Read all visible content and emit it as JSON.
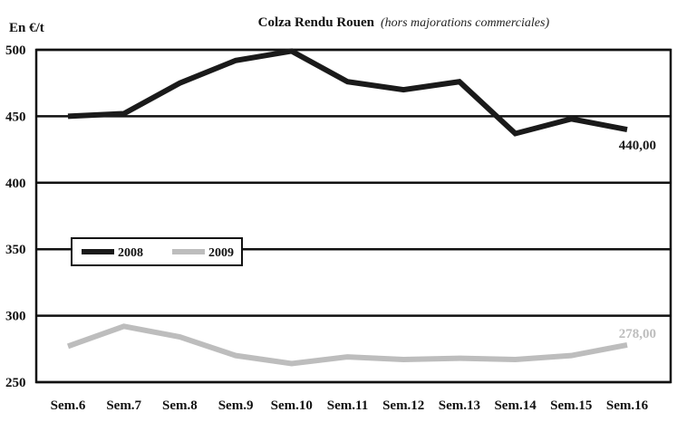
{
  "chart_data": {
    "type": "line",
    "title": "Colza Rendu Rouen",
    "subtitle": "(hors majorations commerciales)",
    "ylabel": "En €/t",
    "xlabel": "",
    "ylim": [
      250,
      500
    ],
    "y_ticks": [
      "500",
      "450",
      "400",
      "350",
      "300",
      "250"
    ],
    "y_tick_values": [
      500,
      450,
      400,
      350,
      300,
      250
    ],
    "grid": true,
    "legend_position": "center-left",
    "categories": [
      "Sem.6",
      "Sem.7",
      "Sem.8",
      "Sem.9",
      "Sem.10",
      "Sem.11",
      "Sem.12",
      "Sem.13",
      "Sem.14",
      "Sem.15",
      "Sem.16"
    ],
    "series": [
      {
        "name": "2008",
        "color": "#1a1a1a",
        "values": [
          450,
          452,
          475,
          492,
          499,
          476,
          470,
          476,
          437,
          448,
          440
        ],
        "end_label": "440,00"
      },
      {
        "name": "2009",
        "color": "#bdbdbd",
        "values": [
          277,
          292,
          284,
          270,
          264,
          269,
          267,
          268,
          267,
          270,
          278
        ],
        "end_label": "278,00"
      }
    ]
  }
}
